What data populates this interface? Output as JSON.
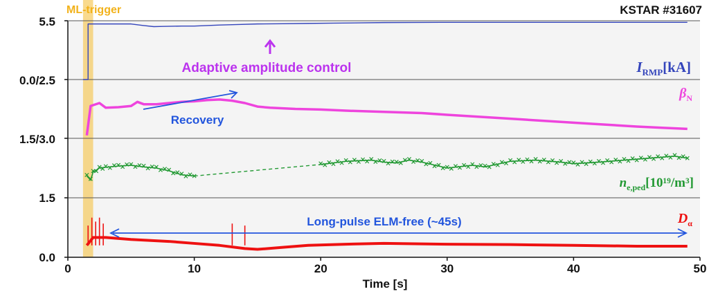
{
  "chart_data": {
    "type": "line",
    "title": "",
    "corner_label": "KSTAR #31607",
    "xlabel": "Time [s]",
    "xlim": [
      0,
      50
    ],
    "x_ticks": [
      0,
      10,
      20,
      30,
      40,
      50
    ],
    "y_tick_labels": [
      "5.5",
      "0.0/2.5",
      "1.5/3.0",
      "1.5",
      "0.0"
    ],
    "grid": true,
    "trigger_band": {
      "label": "ML-trigger",
      "x_start": 1.2,
      "x_end": 2.0,
      "color": "#F5C242"
    },
    "annotations": {
      "adaptive": "Adaptive amplitude control",
      "recovery": "Recovery",
      "elm_free": "Long-pulse ELM-free (~45s)"
    },
    "series": [
      {
        "name": "I_RMP [kA]",
        "label_main": "I",
        "label_sub": "RMP",
        "label_unit": "[kA]",
        "color": "#3344BB",
        "panel": 0,
        "ylim": [
          0.0,
          5.5
        ],
        "points": [
          [
            1.2,
            0.0
          ],
          [
            1.6,
            0.0
          ],
          [
            1.6,
            5.2
          ],
          [
            3,
            5.2
          ],
          [
            5,
            5.2
          ],
          [
            6,
            5.05
          ],
          [
            6.8,
            4.95
          ],
          [
            7.5,
            4.97
          ],
          [
            9,
            5.0
          ],
          [
            10,
            5.0
          ],
          [
            11,
            5.05
          ],
          [
            12,
            5.1
          ],
          [
            13.5,
            5.15
          ],
          [
            15,
            5.2
          ],
          [
            17,
            5.22
          ],
          [
            19,
            5.25
          ],
          [
            21,
            5.28
          ],
          [
            23,
            5.3
          ],
          [
            25,
            5.33
          ],
          [
            30,
            5.35
          ],
          [
            35,
            5.35
          ],
          [
            40,
            5.35
          ],
          [
            45,
            5.35
          ],
          [
            49,
            5.35
          ]
        ]
      },
      {
        "name": "beta_N",
        "label_main": "β",
        "label_sub": "N",
        "label_unit": "",
        "color": "#EE44DD",
        "panel": 1,
        "ylim": [
          1.5,
          2.5
        ],
        "points": [
          [
            1.5,
            1.55
          ],
          [
            1.8,
            2.05
          ],
          [
            2.5,
            2.1
          ],
          [
            3,
            2.02
          ],
          [
            4,
            2.03
          ],
          [
            5,
            2.05
          ],
          [
            5.5,
            2.12
          ],
          [
            6,
            2.08
          ],
          [
            7,
            2.08
          ],
          [
            8,
            2.1
          ],
          [
            9,
            2.12
          ],
          [
            10,
            2.13
          ],
          [
            11,
            2.15
          ],
          [
            12,
            2.16
          ],
          [
            13,
            2.14
          ],
          [
            14,
            2.1
          ],
          [
            15,
            2.04
          ],
          [
            16,
            2.02
          ],
          [
            18,
            2.0
          ],
          [
            20,
            1.99
          ],
          [
            22,
            1.97
          ],
          [
            25,
            1.95
          ],
          [
            28,
            1.93
          ],
          [
            30,
            1.9
          ],
          [
            33,
            1.86
          ],
          [
            36,
            1.82
          ],
          [
            39,
            1.78
          ],
          [
            42,
            1.74
          ],
          [
            45,
            1.7
          ],
          [
            47,
            1.68
          ],
          [
            49,
            1.66
          ]
        ]
      },
      {
        "name": "n_e,ped [10^19/m^3]",
        "label_main": "n",
        "label_sub": "e,ped",
        "label_unit": "[10¹⁹/m³]",
        "color": "#229933",
        "panel": 2,
        "ylim": [
          1.5,
          3.0
        ],
        "points": [
          [
            1.5,
            2.05
          ],
          [
            1.8,
            1.95
          ],
          [
            2,
            2.15
          ],
          [
            2.5,
            2.25
          ],
          [
            3,
            2.27
          ],
          [
            4,
            2.3
          ],
          [
            5,
            2.32
          ],
          [
            6,
            2.28
          ],
          [
            7,
            2.25
          ],
          [
            8,
            2.18
          ],
          [
            9,
            2.08
          ],
          [
            10,
            2.05
          ],
          [
            20,
            2.34
          ],
          [
            22,
            2.42
          ],
          [
            24,
            2.45
          ],
          [
            25,
            2.4
          ],
          [
            26,
            2.38
          ],
          [
            27,
            2.45
          ],
          [
            28,
            2.4
          ],
          [
            30,
            2.25
          ],
          [
            32,
            2.32
          ],
          [
            33,
            2.28
          ],
          [
            35,
            2.42
          ],
          [
            37,
            2.45
          ],
          [
            39,
            2.4
          ],
          [
            40,
            2.36
          ],
          [
            42,
            2.4
          ],
          [
            44,
            2.45
          ],
          [
            46,
            2.5
          ],
          [
            48,
            2.55
          ],
          [
            49,
            2.5
          ]
        ]
      },
      {
        "name": "D_alpha",
        "label_main": "D",
        "label_sub": "α",
        "label_unit": "",
        "color": "#EE1111",
        "panel": 3,
        "ylim": [
          0.0,
          1.5
        ],
        "points": [
          [
            1.5,
            0.3
          ],
          [
            2,
            0.5
          ],
          [
            3,
            0.5
          ],
          [
            5,
            0.45
          ],
          [
            8,
            0.4
          ],
          [
            10,
            0.35
          ],
          [
            12,
            0.3
          ],
          [
            14,
            0.22
          ],
          [
            15,
            0.2
          ],
          [
            17,
            0.25
          ],
          [
            19,
            0.3
          ],
          [
            22,
            0.33
          ],
          [
            25,
            0.35
          ],
          [
            30,
            0.33
          ],
          [
            35,
            0.32
          ],
          [
            40,
            0.3
          ],
          [
            45,
            0.28
          ],
          [
            49,
            0.28
          ]
        ]
      }
    ]
  }
}
